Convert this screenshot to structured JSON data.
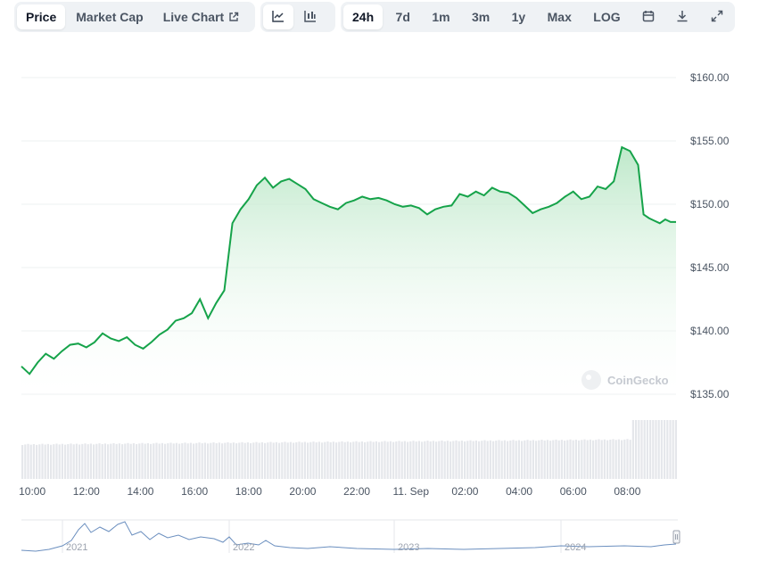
{
  "toolbar": {
    "metric_tabs": [
      {
        "label": "Price",
        "active": true
      },
      {
        "label": "Market Cap",
        "active": false
      },
      {
        "label": "Live Chart",
        "active": false,
        "icon": "external-link-icon"
      }
    ],
    "chart_type_buttons": [
      {
        "icon": "line-chart-icon",
        "active": true
      },
      {
        "icon": "candlestick-chart-icon",
        "active": false
      }
    ],
    "range_tabs": [
      {
        "label": "24h",
        "active": true
      },
      {
        "label": "7d",
        "active": false
      },
      {
        "label": "1m",
        "active": false
      },
      {
        "label": "3m",
        "active": false
      },
      {
        "label": "1y",
        "active": false
      },
      {
        "label": "Max",
        "active": false
      },
      {
        "label": "LOG",
        "active": false
      }
    ],
    "action_icons": [
      "calendar-icon",
      "download-icon",
      "expand-icon"
    ]
  },
  "watermark": "CoinGecko",
  "colors": {
    "line": "#16a34a",
    "area_top": "#b7e6c4",
    "volume": "#e5e7eb",
    "navigator_line": "#6b8fbf"
  },
  "chart_data": {
    "type": "area",
    "y_ticks": [
      "$160.00",
      "$155.00",
      "$150.00",
      "$145.00",
      "$140.00",
      "$135.00"
    ],
    "y_tick_values": [
      160,
      155,
      150,
      145,
      140,
      135
    ],
    "ylim": [
      135,
      160
    ],
    "x_ticks": [
      "10:00",
      "12:00",
      "14:00",
      "16:00",
      "18:00",
      "20:00",
      "22:00",
      "11. Sep",
      "02:00",
      "04:00",
      "06:00",
      "08:00"
    ],
    "x_tick_hours": [
      10,
      12,
      14,
      16,
      18,
      20,
      22,
      24,
      26,
      28,
      30,
      32
    ],
    "x_range_hours": [
      9.6,
      33.8
    ],
    "series": [
      {
        "x": [
          9.6,
          9.9,
          10.2,
          10.5,
          10.8,
          11.1,
          11.4,
          11.7,
          12.0,
          12.3,
          12.6,
          12.9,
          13.2,
          13.5,
          13.8,
          14.1,
          14.4,
          14.7,
          15.0,
          15.3,
          15.6,
          15.9,
          16.2,
          16.5,
          16.8,
          17.1,
          17.4,
          17.7,
          18.0,
          18.3,
          18.6,
          18.9,
          19.2,
          19.5,
          19.8,
          20.1,
          20.4,
          20.7,
          21.0,
          21.3,
          21.6,
          21.9,
          22.2,
          22.5,
          22.8,
          23.1,
          23.4,
          23.7,
          24.0,
          24.3,
          24.6,
          24.9,
          25.2,
          25.5,
          25.8,
          26.1,
          26.4,
          26.7,
          27.0,
          27.3,
          27.6,
          27.9,
          28.2,
          28.5,
          28.8,
          29.1,
          29.4,
          29.7,
          30.0,
          30.3,
          30.6,
          30.9,
          31.2,
          31.5,
          31.8,
          32.1,
          32.4,
          32.6,
          32.8,
          33.0,
          33.2,
          33.4,
          33.6,
          33.8
        ],
        "y": [
          137.2,
          136.6,
          137.5,
          138.2,
          137.8,
          138.4,
          138.9,
          139.0,
          138.7,
          139.1,
          139.8,
          139.4,
          139.2,
          139.5,
          138.9,
          138.6,
          139.1,
          139.7,
          140.1,
          140.8,
          141.0,
          141.4,
          142.5,
          141.0,
          142.2,
          143.2,
          148.5,
          149.6,
          150.4,
          151.5,
          152.1,
          151.3,
          151.8,
          152.0,
          151.6,
          151.2,
          150.4,
          150.1,
          149.8,
          149.6,
          150.1,
          150.3,
          150.6,
          150.4,
          150.5,
          150.3,
          150.0,
          149.8,
          149.9,
          149.7,
          149.2,
          149.6,
          149.8,
          149.9,
          150.8,
          150.6,
          151.0,
          150.7,
          151.3,
          151.0,
          150.9,
          150.5,
          149.9,
          149.3,
          149.6,
          149.8,
          150.1,
          150.6,
          151.0,
          150.4,
          150.6,
          151.4,
          151.2,
          151.8,
          154.5,
          154.2,
          153.1,
          149.2,
          148.9,
          148.7,
          148.5,
          148.8,
          148.6,
          148.6
        ]
      }
    ],
    "navigator": {
      "labels": [
        "2021",
        "2022",
        "2023",
        "2024"
      ]
    }
  }
}
